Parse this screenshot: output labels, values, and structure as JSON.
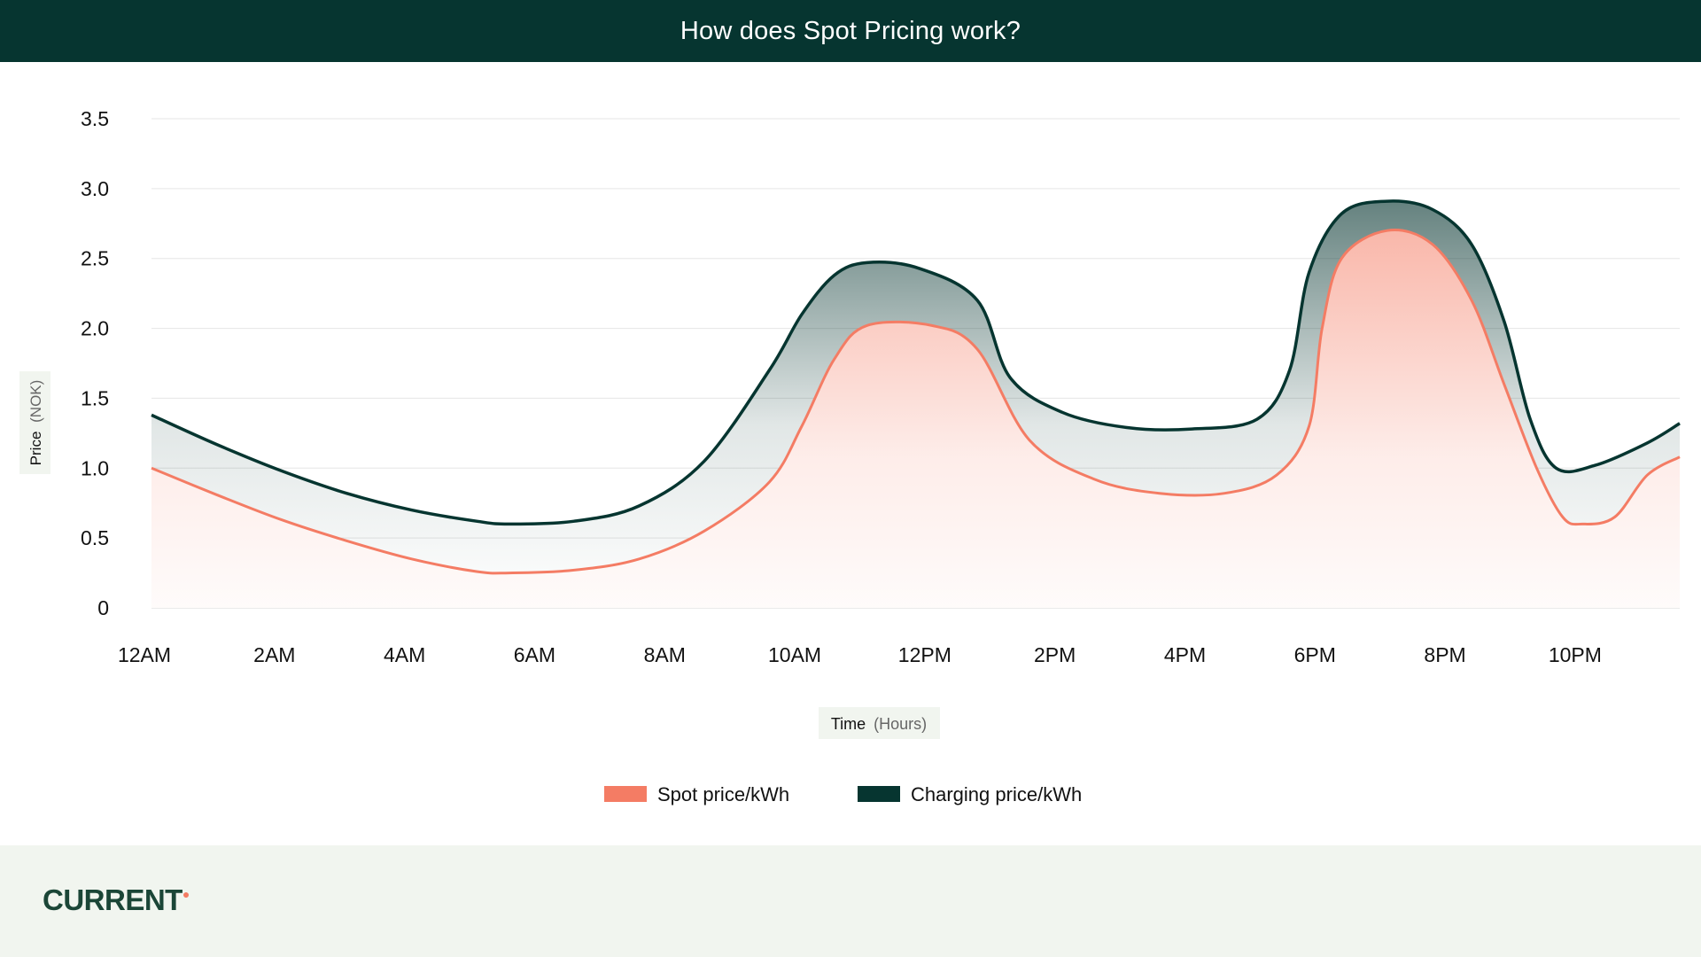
{
  "header": {
    "title": "How does Spot Pricing work?"
  },
  "colors": {
    "header_bg": "#063530",
    "charging": "#063530",
    "spot": "#f47c64",
    "footer_bg": "#f1f5ef",
    "logo": "#1b4637"
  },
  "chart_data": {
    "type": "area",
    "title": "How does Spot Pricing work?",
    "xlabel": "Time",
    "xlabel_unit": "(Hours)",
    "ylabel": "Price",
    "ylabel_unit": "(NOK)",
    "xlim": [
      0,
      23.5
    ],
    "ylim": [
      0,
      3.5
    ],
    "y_ticks": [
      "0",
      "0.5",
      "1.0",
      "1.5",
      "2.0",
      "2.5",
      "3.0",
      "3.5"
    ],
    "x_ticks": [
      "12AM",
      "2AM",
      "4AM",
      "6AM",
      "8AM",
      "10AM",
      "12PM",
      "2PM",
      "4PM",
      "6PM",
      "8PM",
      "10PM"
    ],
    "grid": true,
    "legend_position": "bottom",
    "series": [
      {
        "name": "Spot price/kWh",
        "color": "#f47c64",
        "points": [
          [
            0,
            1.0
          ],
          [
            1,
            0.81
          ],
          [
            2,
            0.63
          ],
          [
            3,
            0.48
          ],
          [
            4,
            0.35
          ],
          [
            5,
            0.26
          ],
          [
            5.5,
            0.25
          ],
          [
            6.5,
            0.27
          ],
          [
            7.5,
            0.35
          ],
          [
            8.5,
            0.55
          ],
          [
            9.5,
            0.9
          ],
          [
            10,
            1.3
          ],
          [
            10.5,
            1.78
          ],
          [
            11,
            2.02
          ],
          [
            12,
            2.02
          ],
          [
            12.7,
            1.85
          ],
          [
            13.5,
            1.2
          ],
          [
            14.5,
            0.92
          ],
          [
            15.5,
            0.82
          ],
          [
            16.5,
            0.82
          ],
          [
            17.3,
            0.95
          ],
          [
            17.8,
            1.3
          ],
          [
            18,
            2.0
          ],
          [
            18.3,
            2.5
          ],
          [
            19,
            2.7
          ],
          [
            19.7,
            2.6
          ],
          [
            20.3,
            2.2
          ],
          [
            20.8,
            1.6
          ],
          [
            21.3,
            1.0
          ],
          [
            21.7,
            0.65
          ],
          [
            22,
            0.6
          ],
          [
            22.5,
            0.65
          ],
          [
            23,
            0.95
          ],
          [
            23.5,
            1.08
          ]
        ]
      },
      {
        "name": "Charging price/kWh",
        "color": "#063530",
        "points": [
          [
            0,
            1.38
          ],
          [
            1,
            1.17
          ],
          [
            2,
            0.98
          ],
          [
            3,
            0.82
          ],
          [
            4,
            0.7
          ],
          [
            5,
            0.62
          ],
          [
            5.5,
            0.6
          ],
          [
            6.5,
            0.62
          ],
          [
            7.5,
            0.73
          ],
          [
            8.5,
            1.05
          ],
          [
            9.5,
            1.7
          ],
          [
            10,
            2.1
          ],
          [
            10.5,
            2.38
          ],
          [
            11,
            2.47
          ],
          [
            11.8,
            2.43
          ],
          [
            12.7,
            2.2
          ],
          [
            13.2,
            1.65
          ],
          [
            14,
            1.4
          ],
          [
            15,
            1.29
          ],
          [
            16,
            1.28
          ],
          [
            17,
            1.35
          ],
          [
            17.5,
            1.7
          ],
          [
            17.8,
            2.4
          ],
          [
            18.3,
            2.82
          ],
          [
            19,
            2.91
          ],
          [
            19.7,
            2.85
          ],
          [
            20.3,
            2.6
          ],
          [
            20.8,
            2.05
          ],
          [
            21.2,
            1.35
          ],
          [
            21.6,
            1.0
          ],
          [
            22.2,
            1.02
          ],
          [
            23,
            1.18
          ],
          [
            23.5,
            1.32
          ]
        ]
      }
    ]
  },
  "legend": {
    "items": [
      "Spot price/kWh",
      "Charging price/kWh"
    ]
  },
  "footer": {
    "logo_text": "CURRENT"
  }
}
